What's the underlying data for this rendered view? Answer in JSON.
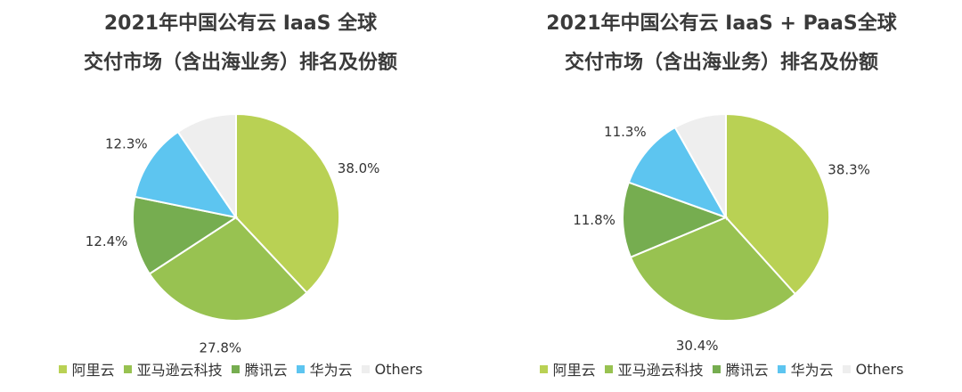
{
  "colors": {
    "aliyun": "#b9d154",
    "amazon": "#98c251",
    "tencent": "#76ad50",
    "huawei": "#5dc5f0",
    "others": "#eeeeee"
  },
  "chart_data": [
    {
      "type": "pie",
      "title_lines": [
        "2021年中国公有云 IaaS 全球",
        "交付市场（含出海业务）排名及份额"
      ],
      "categories": [
        "阿里云",
        "亚马逊云科技",
        "腾讯云",
        "华为云",
        "Others"
      ],
      "values": [
        38.0,
        27.8,
        12.4,
        12.3,
        9.5
      ],
      "labels": [
        "38.0%",
        "27.8%",
        "12.4%",
        "12.3%",
        ""
      ],
      "legend": "bottom"
    },
    {
      "type": "pie",
      "title_lines": [
        "2021年中国公有云 IaaS + PaaS全球",
        "交付市场（含出海业务）排名及份额"
      ],
      "categories": [
        "阿里云",
        "亚马逊云科技",
        "腾讯云",
        "华为云",
        "Others"
      ],
      "values": [
        38.3,
        30.4,
        11.8,
        11.3,
        8.2
      ],
      "labels": [
        "38.3%",
        "30.4%",
        "11.8%",
        "11.3%",
        ""
      ],
      "legend": "bottom"
    }
  ]
}
